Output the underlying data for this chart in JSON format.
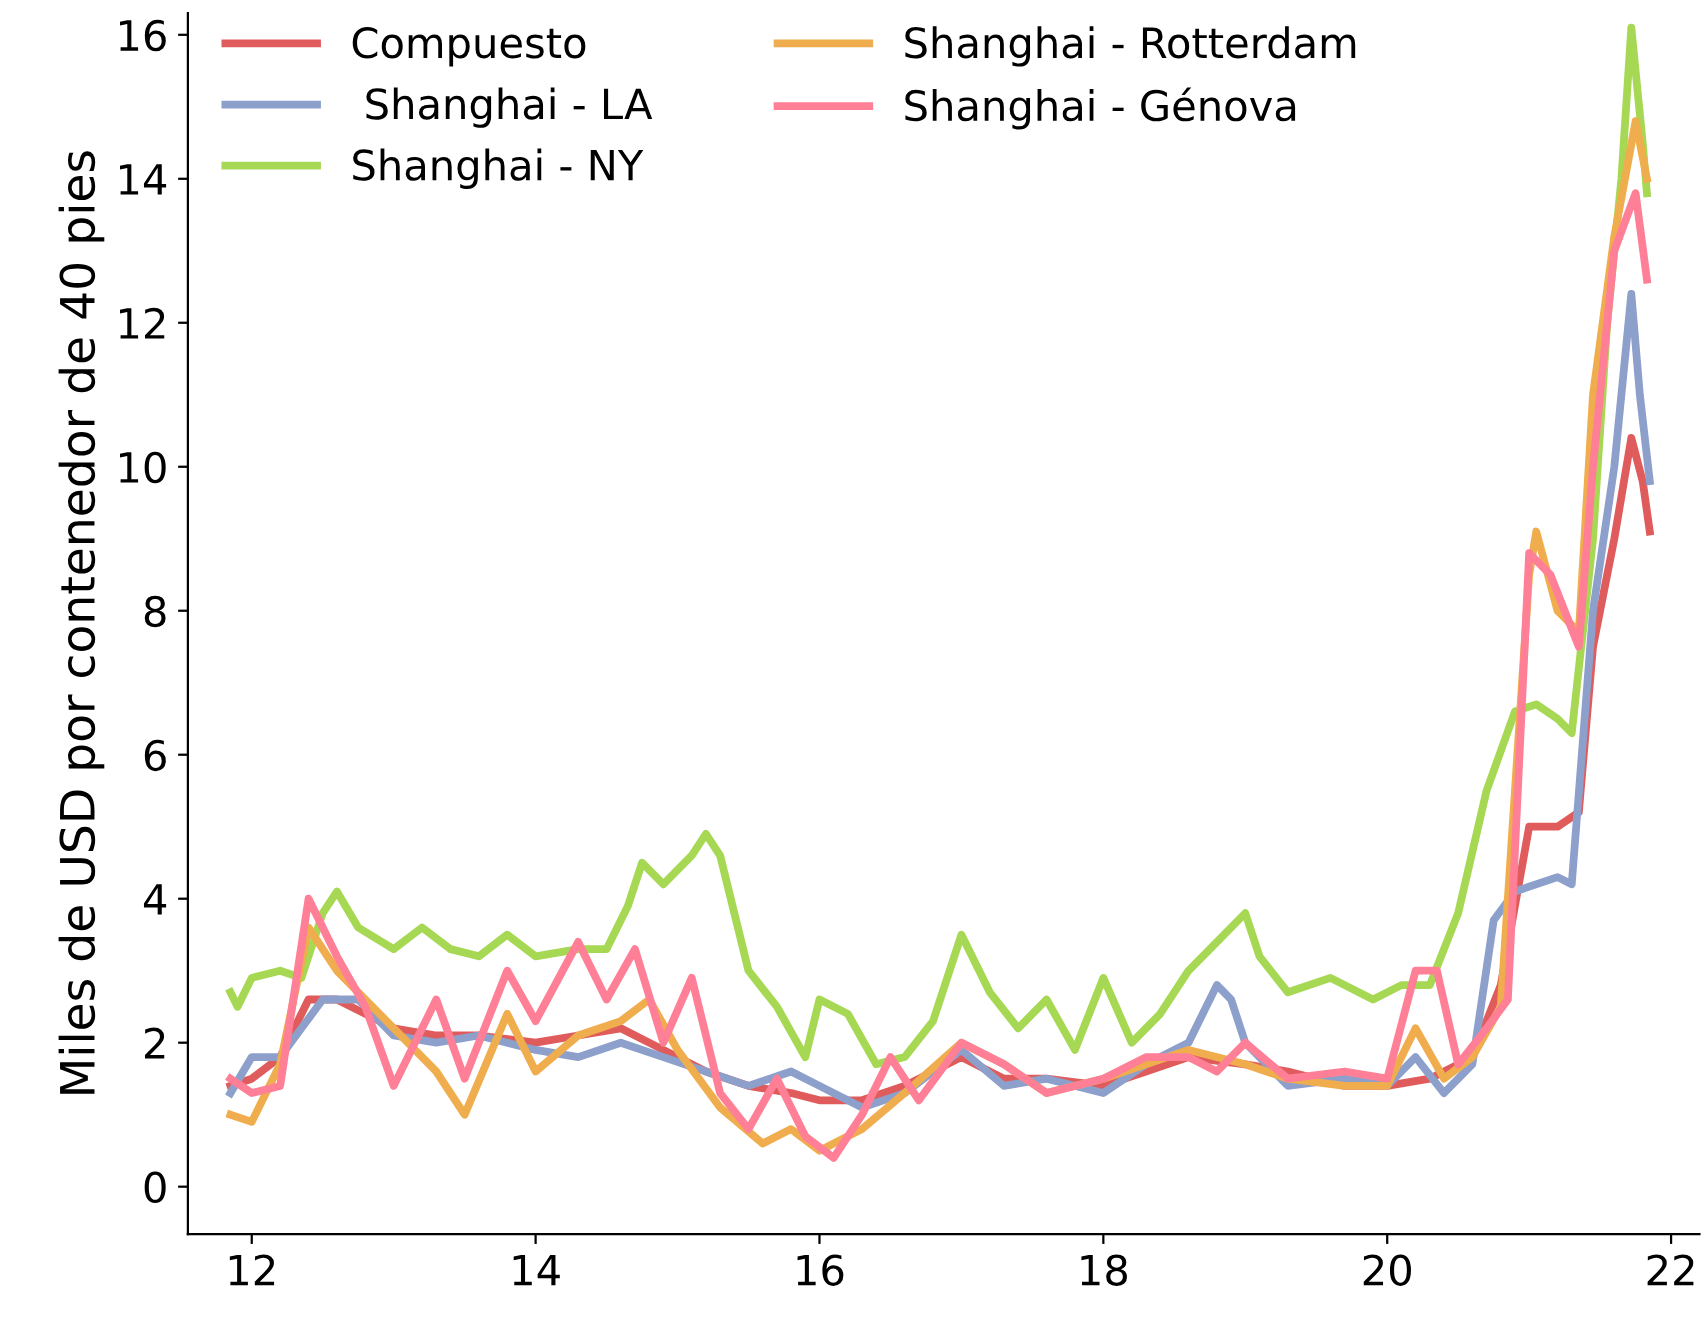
{
  "chart_data": {
    "type": "line",
    "ylabel": "Miles de USD por contenedor de 40 pies",
    "xlim": [
      11.55,
      22.2
    ],
    "ylim": [
      -0.66,
      16.3
    ],
    "xticks": [
      12,
      14,
      16,
      18,
      20,
      22
    ],
    "yticks": [
      0,
      2,
      4,
      6,
      8,
      10,
      12,
      14,
      16
    ],
    "grid": false,
    "legend": "top left",
    "marker": "none",
    "line_style": "solid",
    "series": [
      {
        "name": "Compuesto",
        "color": "#e05c5c",
        "x": [
          11.85,
          12.0,
          12.2,
          12.4,
          12.6,
          12.8,
          13.0,
          13.3,
          13.6,
          14.0,
          14.3,
          14.6,
          14.9,
          15.2,
          15.5,
          15.8,
          16.0,
          16.3,
          16.6,
          17.0,
          17.3,
          17.6,
          18.0,
          18.3,
          18.6,
          19.0,
          19.3,
          19.7,
          20.0,
          20.3,
          20.6,
          20.8,
          21.0,
          21.2,
          21.35,
          21.45,
          21.6,
          21.72,
          21.8,
          21.85
        ],
        "values": [
          1.4,
          1.5,
          1.8,
          2.6,
          2.6,
          2.4,
          2.2,
          2.1,
          2.1,
          2.0,
          2.1,
          2.2,
          1.9,
          1.6,
          1.4,
          1.3,
          1.2,
          1.2,
          1.4,
          1.8,
          1.5,
          1.5,
          1.4,
          1.6,
          1.8,
          1.7,
          1.6,
          1.4,
          1.4,
          1.5,
          1.8,
          2.8,
          5.0,
          5.0,
          5.2,
          7.5,
          9.0,
          10.4,
          9.8,
          9.1
        ]
      },
      {
        "name": " Shanghai - LA",
        "color": "#8da0cb",
        "x": [
          11.85,
          12.0,
          12.2,
          12.35,
          12.5,
          12.75,
          13.0,
          13.3,
          13.6,
          14.0,
          14.3,
          14.6,
          14.9,
          15.2,
          15.5,
          15.8,
          16.0,
          16.3,
          16.6,
          17.0,
          17.3,
          17.6,
          18.0,
          18.3,
          18.6,
          18.8,
          18.9,
          19.0,
          19.3,
          19.7,
          20.0,
          20.2,
          20.4,
          20.6,
          20.75,
          20.9,
          21.2,
          21.3,
          21.45,
          21.6,
          21.72,
          21.78,
          21.85
        ],
        "values": [
          1.3,
          1.8,
          1.8,
          2.2,
          2.6,
          2.6,
          2.1,
          2.0,
          2.1,
          1.9,
          1.8,
          2.0,
          1.8,
          1.6,
          1.4,
          1.6,
          1.4,
          1.1,
          1.3,
          1.9,
          1.4,
          1.5,
          1.3,
          1.7,
          2.0,
          2.8,
          2.6,
          2.0,
          1.4,
          1.5,
          1.4,
          1.8,
          1.3,
          1.7,
          3.7,
          4.1,
          4.3,
          4.2,
          8.0,
          10.0,
          12.4,
          11.0,
          9.8
        ]
      },
      {
        "name": "Shanghai - NY",
        "color": "#a6d854",
        "x": [
          11.85,
          11.9,
          12.0,
          12.2,
          12.35,
          12.5,
          12.6,
          12.75,
          13.0,
          13.2,
          13.4,
          13.6,
          13.8,
          14.0,
          14.3,
          14.5,
          14.65,
          14.75,
          14.9,
          15.1,
          15.2,
          15.3,
          15.5,
          15.7,
          15.9,
          16.0,
          16.2,
          16.4,
          16.6,
          16.8,
          17.0,
          17.2,
          17.4,
          17.6,
          17.8,
          18.0,
          18.2,
          18.4,
          18.6,
          18.8,
          19.0,
          19.1,
          19.3,
          19.6,
          19.9,
          20.1,
          20.3,
          20.5,
          20.7,
          20.9,
          21.05,
          21.2,
          21.3,
          21.45,
          21.55,
          21.65,
          21.72,
          21.8,
          21.83
        ],
        "values": [
          2.7,
          2.5,
          2.9,
          3.0,
          2.9,
          3.8,
          4.1,
          3.6,
          3.3,
          3.6,
          3.3,
          3.2,
          3.5,
          3.2,
          3.3,
          3.3,
          3.9,
          4.5,
          4.2,
          4.6,
          4.9,
          4.6,
          3.0,
          2.5,
          1.8,
          2.6,
          2.4,
          1.7,
          1.8,
          2.3,
          3.5,
          2.7,
          2.2,
          2.6,
          1.9,
          2.9,
          2.0,
          2.4,
          3.0,
          3.4,
          3.8,
          3.2,
          2.7,
          2.9,
          2.6,
          2.8,
          2.8,
          3.8,
          5.5,
          6.6,
          6.7,
          6.5,
          6.3,
          9.0,
          12.0,
          14.0,
          16.1,
          14.5,
          13.8
        ]
      },
      {
        "name": "Shanghai - Rotterdam",
        "color": "#f0ad4e",
        "x": [
          11.85,
          12.0,
          12.2,
          12.4,
          12.6,
          12.8,
          13.0,
          13.3,
          13.5,
          13.8,
          14.0,
          14.3,
          14.6,
          14.8,
          15.0,
          15.3,
          15.6,
          15.8,
          16.0,
          16.3,
          16.6,
          17.0,
          17.3,
          17.6,
          18.0,
          18.3,
          18.6,
          19.0,
          19.3,
          19.7,
          20.0,
          20.2,
          20.4,
          20.6,
          20.8,
          21.0,
          21.05,
          21.2,
          21.35,
          21.45,
          21.6,
          21.75,
          21.83
        ],
        "values": [
          1.0,
          0.9,
          1.7,
          3.6,
          3.0,
          2.6,
          2.2,
          1.6,
          1.0,
          2.4,
          1.6,
          2.1,
          2.3,
          2.6,
          1.9,
          1.1,
          0.6,
          0.8,
          0.5,
          0.8,
          1.3,
          2.0,
          1.7,
          1.3,
          1.5,
          1.7,
          1.9,
          1.7,
          1.5,
          1.4,
          1.4,
          2.2,
          1.5,
          1.8,
          2.5,
          8.5,
          9.1,
          8.0,
          7.7,
          11.0,
          13.2,
          14.8,
          14.0
        ]
      },
      {
        "name": "Shanghai - Génova",
        "color": "#ff7f96",
        "x": [
          11.85,
          12.0,
          12.2,
          12.4,
          12.6,
          12.8,
          13.0,
          13.3,
          13.5,
          13.8,
          14.0,
          14.3,
          14.5,
          14.7,
          14.9,
          15.1,
          15.3,
          15.5,
          15.7,
          15.9,
          16.1,
          16.3,
          16.5,
          16.7,
          17.0,
          17.3,
          17.6,
          18.0,
          18.3,
          18.6,
          18.8,
          19.0,
          19.3,
          19.7,
          20.0,
          20.2,
          20.35,
          20.5,
          20.7,
          20.85,
          21.0,
          21.15,
          21.35,
          21.45,
          21.6,
          21.75,
          21.83
        ],
        "values": [
          1.5,
          1.3,
          1.4,
          4.0,
          3.2,
          2.5,
          1.4,
          2.6,
          1.5,
          3.0,
          2.3,
          3.4,
          2.6,
          3.3,
          2.0,
          2.9,
          1.3,
          0.8,
          1.5,
          0.7,
          0.4,
          1.0,
          1.8,
          1.2,
          2.0,
          1.7,
          1.3,
          1.5,
          1.8,
          1.8,
          1.6,
          2.0,
          1.5,
          1.6,
          1.5,
          3.0,
          3.0,
          1.7,
          2.2,
          2.6,
          8.8,
          8.5,
          7.5,
          10.0,
          13.0,
          13.8,
          12.6
        ]
      }
    ]
  }
}
